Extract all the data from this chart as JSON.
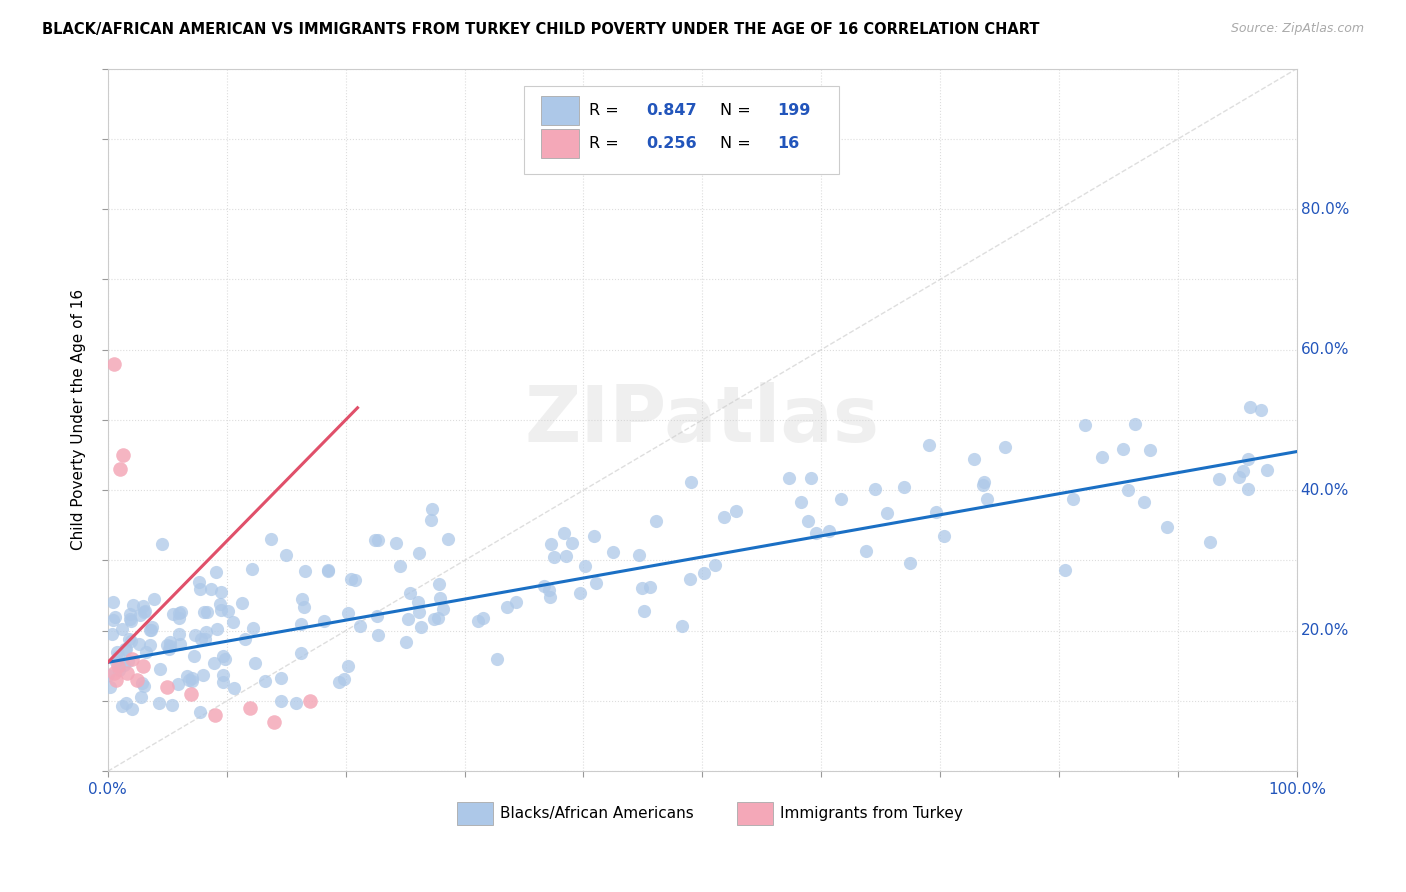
{
  "title": "BLACK/AFRICAN AMERICAN VS IMMIGRANTS FROM TURKEY CHILD POVERTY UNDER THE AGE OF 16 CORRELATION CHART",
  "source": "Source: ZipAtlas.com",
  "ylabel": "Child Poverty Under the Age of 16",
  "xlabel": "",
  "xlim": [
    0,
    1.0
  ],
  "ylim": [
    0,
    1.0
  ],
  "blue_R": 0.847,
  "blue_N": 199,
  "pink_R": 0.256,
  "pink_N": 16,
  "blue_color": "#adc8e8",
  "pink_color": "#f4a8b8",
  "blue_line_color": "#1a6fc4",
  "pink_line_color": "#e0506a",
  "diagonal_color": "#d0d0d0",
  "watermark": "ZIPatlas",
  "legend_blue_label": "Blacks/African Americans",
  "legend_pink_label": "Immigrants from Turkey"
}
